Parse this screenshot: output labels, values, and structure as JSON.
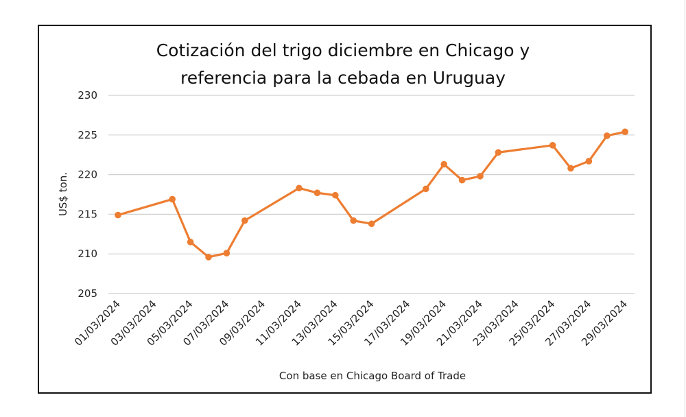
{
  "chart_data": {
    "type": "line",
    "title": "Cotización del trigo diciembre en Chicago y referencia para la cebada en Uruguay",
    "title_lines": [
      "Cotización del trigo diciembre en Chicago y",
      "referencia para la cebada en Uruguay"
    ],
    "xlabel": "Con base en Chicago Board of Trade",
    "ylabel": "US$ ton.",
    "ylim": [
      205,
      230
    ],
    "y_ticks": [
      205,
      210,
      215,
      220,
      225,
      230
    ],
    "x_tick_labels": [
      "01/03/2024",
      "03/03/2024",
      "05/03/2024",
      "07/03/2024",
      "09/03/2024",
      "11/03/2024",
      "13/03/2024",
      "15/03/2024",
      "17/03/2024",
      "19/03/2024",
      "21/03/2024",
      "23/03/2024",
      "25/03/2024",
      "27/03/2024",
      "29/03/2024"
    ],
    "grid": true,
    "legend": false,
    "series": [
      {
        "name": "Trigo diciembre Chicago",
        "color": "#ED7D31",
        "x": [
          "01/03/2024",
          "04/03/2024",
          "05/03/2024",
          "06/03/2024",
          "07/03/2024",
          "08/03/2024",
          "11/03/2024",
          "12/03/2024",
          "13/03/2024",
          "14/03/2024",
          "15/03/2024",
          "18/03/2024",
          "19/03/2024",
          "20/03/2024",
          "21/03/2024",
          "22/03/2024",
          "25/03/2024",
          "26/03/2024",
          "27/03/2024",
          "28/03/2024",
          "29/03/2024"
        ],
        "day": [
          1,
          4,
          5,
          6,
          7,
          8,
          11,
          12,
          13,
          14,
          15,
          18,
          19,
          20,
          21,
          22,
          25,
          26,
          27,
          28,
          29
        ],
        "values": [
          214.9,
          216.9,
          211.5,
          209.6,
          210.1,
          214.2,
          218.3,
          217.7,
          217.4,
          214.2,
          213.8,
          218.2,
          221.3,
          219.3,
          219.8,
          222.8,
          223.7,
          220.8,
          221.7,
          224.9,
          225.4
        ]
      }
    ]
  }
}
